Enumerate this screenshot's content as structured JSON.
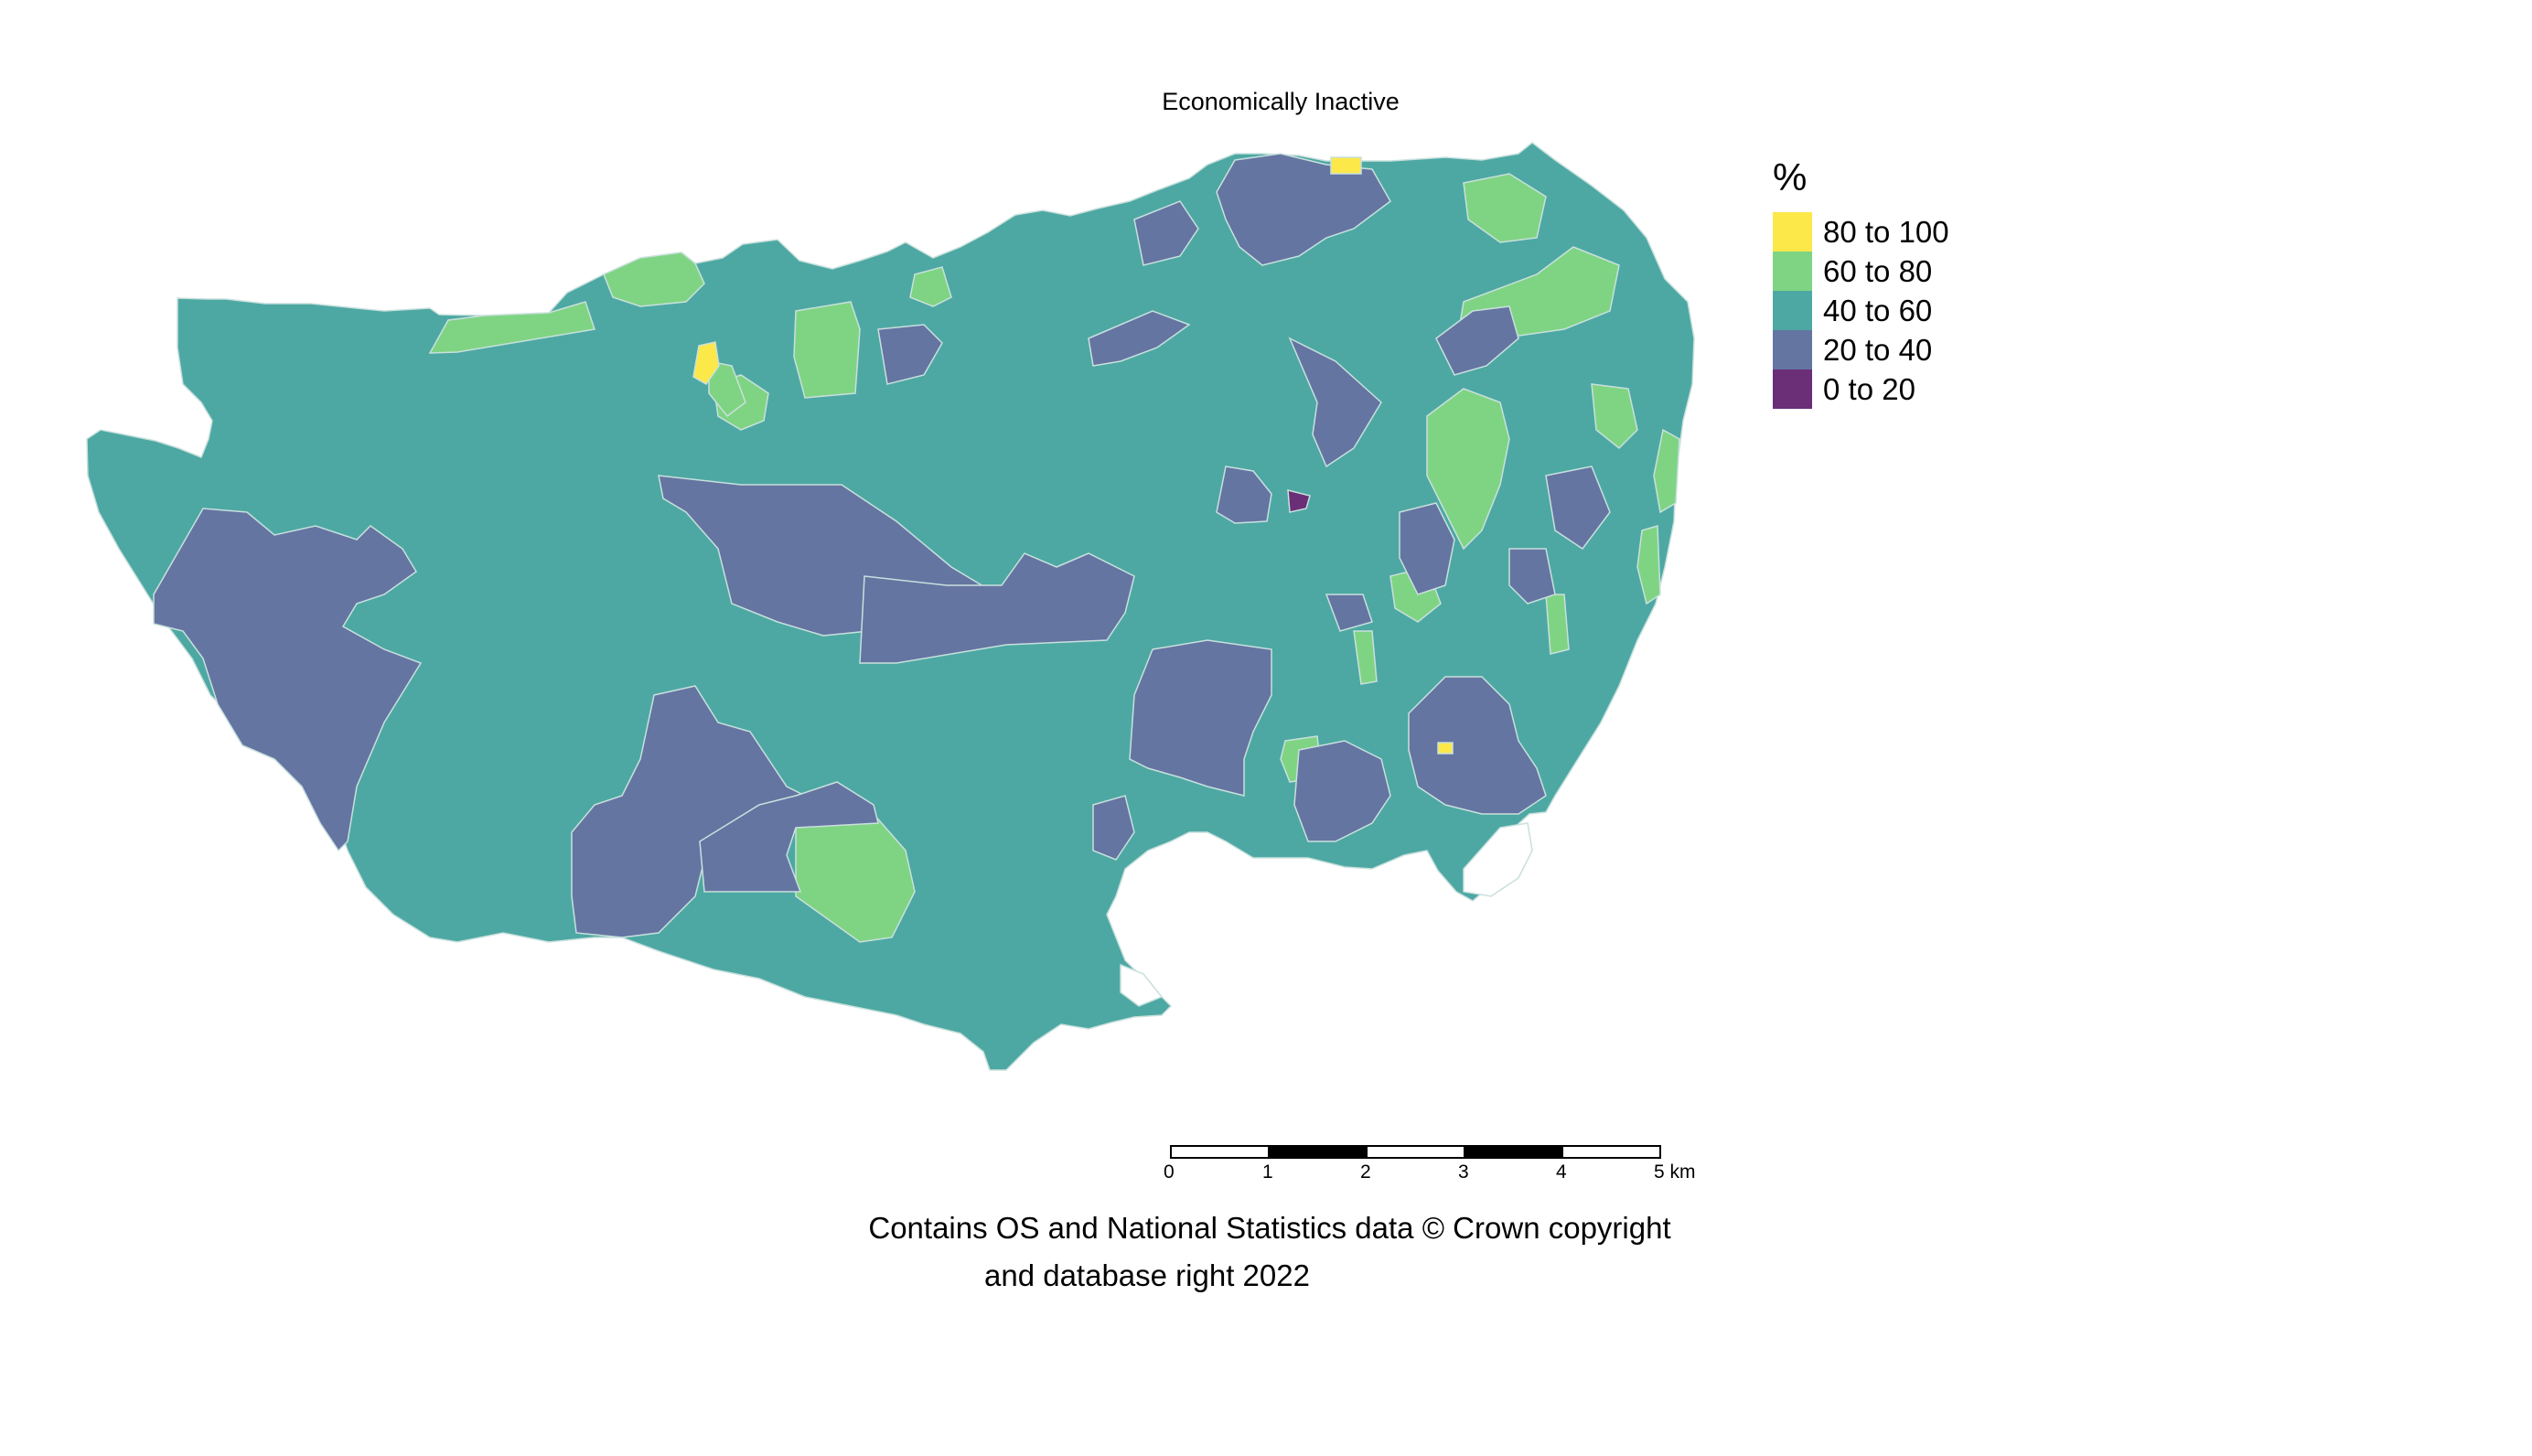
{
  "title": "Economically Inactive",
  "legend": {
    "title": "%",
    "items": [
      {
        "label": "80 to 100",
        "color": "#fde84a"
      },
      {
        "label": "60 to 80",
        "color": "#7fd483"
      },
      {
        "label": "40 to 60",
        "color": "#4da8a3"
      },
      {
        "label": "20 to 40",
        "color": "#6475a2"
      },
      {
        "label": "0 to 20",
        "color": "#6a2f77"
      }
    ]
  },
  "colors": {
    "very_high": "#fde84a",
    "high": "#7fd483",
    "mid": "#4da8a3",
    "low": "#6475a2",
    "very_low": "#6a2f77",
    "boundary": "#c9e0dd"
  },
  "scalebar": {
    "ticks": [
      "0",
      "1",
      "2",
      "3",
      "4",
      "5 km"
    ]
  },
  "credit": {
    "line1": "Contains OS and National Statistics data © Crown copyright",
    "line2": "and database right 2022"
  }
}
